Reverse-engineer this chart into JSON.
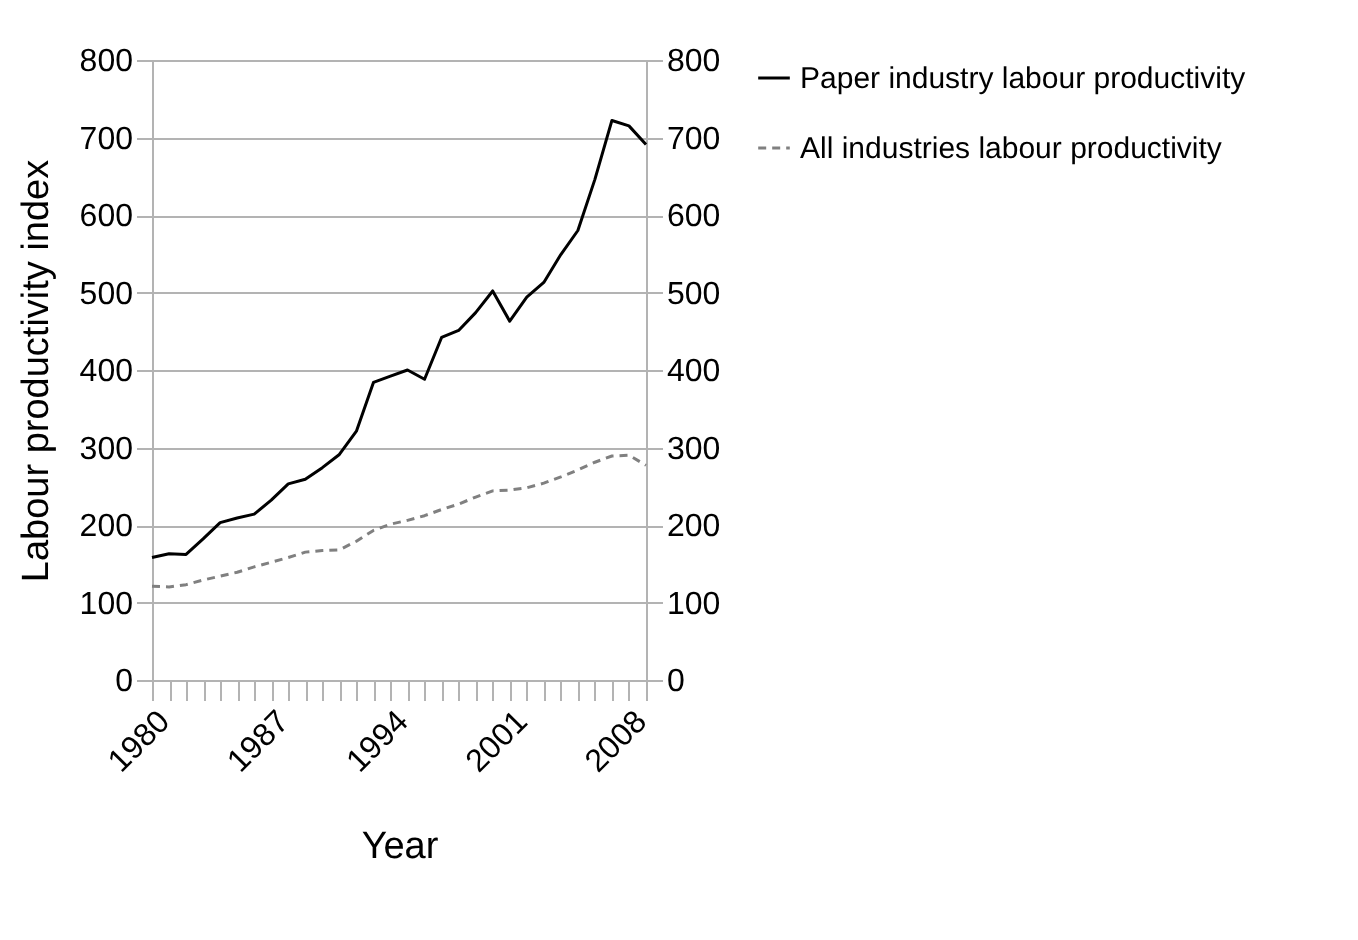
{
  "chart_data": {
    "type": "line",
    "xlabel": "Year",
    "ylabel": "Labour productivity index",
    "x": [
      1980,
      1981,
      1982,
      1983,
      1984,
      1985,
      1986,
      1987,
      1988,
      1989,
      1990,
      1991,
      1992,
      1993,
      1994,
      1995,
      1996,
      1997,
      1998,
      1999,
      2000,
      2001,
      2002,
      2003,
      2004,
      2005,
      2006,
      2007,
      2008,
      2009
    ],
    "series": [
      {
        "name": "Paper industry labour productivity",
        "color": "#000000",
        "line_style": "solid",
        "values": [
          158,
          163,
          162,
          182,
          203,
          209,
          214,
          232,
          253,
          259,
          274,
          291,
          321,
          384,
          392,
          400,
          388,
          442,
          451,
          474,
          502,
          463,
          494,
          513,
          549,
          580,
          646,
          722,
          715,
          691
        ]
      },
      {
        "name": "All industries labour productivity",
        "color": "#808080",
        "line_style": "dashed",
        "values": [
          121,
          120,
          123,
          129,
          134,
          139,
          146,
          152,
          158,
          165,
          167,
          168,
          179,
          193,
          201,
          206,
          212,
          220,
          227,
          236,
          244,
          245,
          248,
          254,
          262,
          271,
          281,
          289,
          290,
          277
        ]
      }
    ],
    "xlim": [
      1980,
      2009
    ],
    "xticks": [
      1980,
      {
        "value": 1981,
        "label": null
      },
      {
        "value": 1982,
        "label": null
      },
      {
        "value": 1983,
        "label": null
      },
      {
        "value": 1984,
        "label": null
      },
      {
        "value": 1985,
        "label": null
      },
      {
        "value": 1986,
        "label": null
      },
      1987,
      {
        "value": 1988,
        "label": null
      },
      {
        "value": 1989,
        "label": null
      },
      {
        "value": 1990,
        "label": null
      },
      {
        "value": 1991,
        "label": null
      },
      {
        "value": 1992,
        "label": null
      },
      {
        "value": 1993,
        "label": null
      },
      1994,
      {
        "value": 1995,
        "label": null
      },
      {
        "value": 1996,
        "label": null
      },
      {
        "value": 1997,
        "label": null
      },
      {
        "value": 1998,
        "label": null
      },
      {
        "value": 1999,
        "label": null
      },
      {
        "value": 2000,
        "label": null
      },
      2001,
      {
        "value": 2002,
        "label": null
      },
      {
        "value": 2003,
        "label": null
      },
      {
        "value": 2004,
        "label": null
      },
      {
        "value": 2005,
        "label": null
      },
      {
        "value": 2006,
        "label": null
      },
      {
        "value": 2007,
        "label": null
      },
      2008,
      {
        "value": 2009,
        "label": null
      }
    ],
    "ylim": [
      0,
      800
    ],
    "yticks": [
      0,
      100,
      200,
      300,
      400,
      500,
      600,
      700,
      800
    ],
    "y2lim": [
      0,
      800
    ],
    "y2ticks": [
      0,
      100,
      200,
      300,
      400,
      500,
      600,
      700,
      800
    ],
    "grid": "y",
    "legend": "right",
    "marker": "none"
  }
}
